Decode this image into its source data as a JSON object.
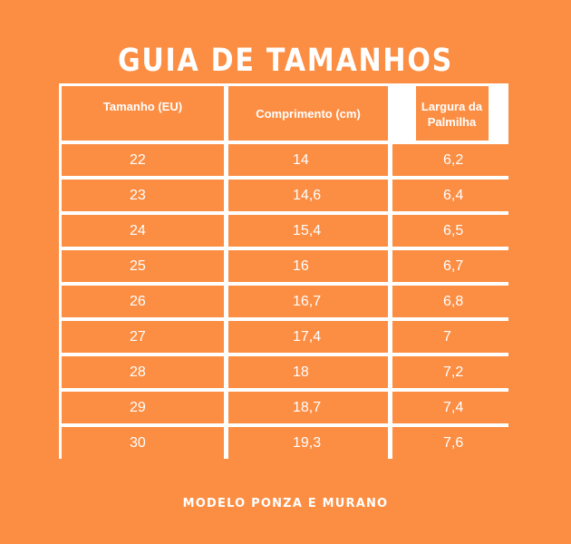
{
  "title": "GUIA DE TAMANHOS",
  "table": {
    "headers": [
      "Tamanho (EU)",
      "Comprimento (cm)",
      "Largura da Palmilha"
    ],
    "rows": [
      [
        "22",
        "14",
        "6,2"
      ],
      [
        "23",
        "14,6",
        "6,4"
      ],
      [
        "24",
        "15,4",
        "6,5"
      ],
      [
        "25",
        "16",
        "6,7"
      ],
      [
        "26",
        "16,7",
        "6,8"
      ],
      [
        "27",
        "17,4",
        "7"
      ],
      [
        "28",
        "18",
        "7,2"
      ],
      [
        "29",
        "18,7",
        "7,4"
      ],
      [
        "30",
        "19,3",
        "7,6"
      ]
    ]
  },
  "footer": "MODELO PONZA E MURANO",
  "colors": {
    "background": "#FC8E44",
    "lines": "#FFFFFF",
    "text": "#FFFFFF"
  }
}
